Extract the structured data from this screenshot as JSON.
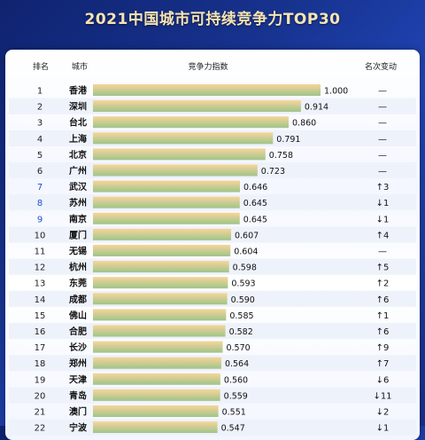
{
  "title": "2021中国城市可持续竞争力TOP30",
  "headers": {
    "rank": "排名",
    "city": "城市",
    "score": "竞争力指数",
    "change": "名次变动"
  },
  "colors": {
    "bar_start": "#f7d59a",
    "bar_end": "#9fc48a",
    "rank_blue": "#1f4fd1",
    "text": "#1a1a1a"
  },
  "chart_data": {
    "type": "bar",
    "orientation": "horizontal",
    "title": "2021中国城市可持续竞争力TOP30",
    "xlim": [
      0,
      1.0
    ],
    "categories": [
      "香港",
      "深圳",
      "台北",
      "上海",
      "北京",
      "广州",
      "武汉",
      "苏州",
      "南京",
      "厦门",
      "无锡",
      "杭州",
      "东莞",
      "成都",
      "佛山",
      "合肥",
      "长沙",
      "郑州",
      "天津",
      "青岛",
      "澳门",
      "宁波"
    ],
    "ranks": [
      "1",
      "2",
      "3",
      "4",
      "5",
      "6",
      "7",
      "8",
      "9",
      "10",
      "11",
      "12",
      "13",
      "14",
      "15",
      "16",
      "17",
      "18",
      "19",
      "20",
      "21",
      "22"
    ],
    "values": [
      1.0,
      0.914,
      0.86,
      0.791,
      0.758,
      0.723,
      0.646,
      0.645,
      0.645,
      0.607,
      0.604,
      0.598,
      0.593,
      0.59,
      0.585,
      0.582,
      0.57,
      0.564,
      0.56,
      0.559,
      0.551,
      0.547
    ],
    "value_labels": [
      "1.000",
      "0.914",
      "0.860",
      "0.791",
      "0.758",
      "0.723",
      "0.646",
      "0.645",
      "0.645",
      "0.607",
      "0.604",
      "0.598",
      "0.593",
      "0.590",
      "0.585",
      "0.582",
      "0.570",
      "0.564",
      "0.560",
      "0.559",
      "0.551",
      "0.547"
    ],
    "rank_change": [
      "—",
      "—",
      "—",
      "—",
      "—",
      "—",
      "↑3",
      "↓1",
      "↓1",
      "↑4",
      "—",
      "↑5",
      "↑2",
      "↑6",
      "↑1",
      "↑6",
      "↑9",
      "↑7",
      "↓6",
      "↓11",
      "↓2",
      "↓1"
    ]
  }
}
